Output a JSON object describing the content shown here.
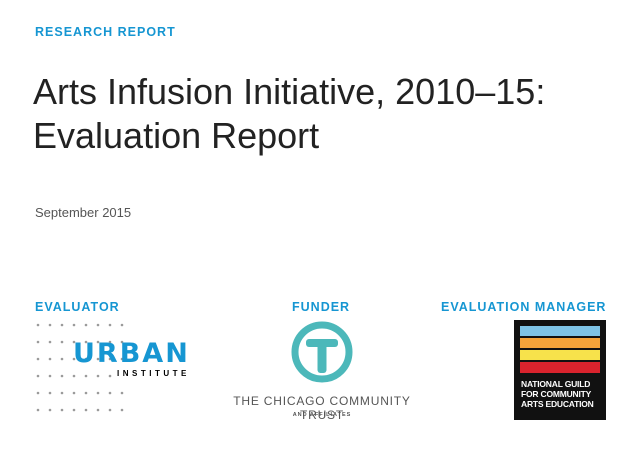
{
  "header": {
    "report_type": "RESEARCH REPORT",
    "title_line1": "Arts Infusion Initiative, 2010–15:",
    "title_line2": "Evaluation Report",
    "date": "September 2015"
  },
  "roles": {
    "evaluator_label": "EVALUATOR",
    "funder_label": "FUNDER",
    "manager_label": "EVALUATION MANAGER"
  },
  "evaluator_logo": {
    "word": "URBAN",
    "subword": "INSTITUTE",
    "color": "#1696d2"
  },
  "funder_logo": {
    "name": "THE CHICAGO COMMUNITY TRUST",
    "tagline": "AND AFFILIATES",
    "color": "#4cb8ba"
  },
  "manager_logo": {
    "lines": [
      "NATIONAL GUILD",
      "FOR COMMUNITY",
      "ARTS EDUCATION"
    ],
    "stripe_colors": [
      "#7ec3e6",
      "#f4a33a",
      "#f7e24b",
      "#d9232d"
    ]
  },
  "colors": {
    "accent": "#1696d2",
    "title_text": "#222222"
  }
}
